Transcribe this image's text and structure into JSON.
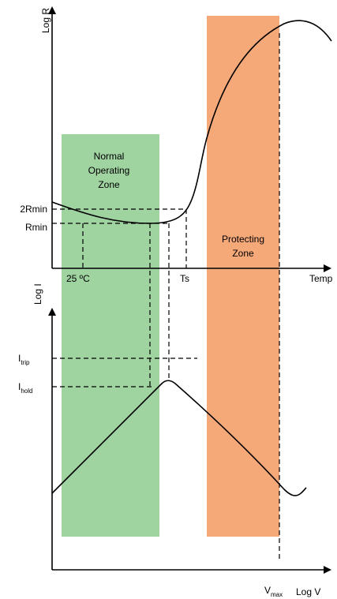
{
  "colors": {
    "normal_zone": "#9fd3a0",
    "protecting_zone": "#f6a978",
    "ink": "#000000"
  },
  "top_plot": {
    "y_axis_label": "Log R",
    "x_axis_label": "Temp",
    "y_ticks": [
      "2Rmin",
      "Rmin"
    ],
    "x_ticks": [
      "25 ºC",
      "Ts"
    ]
  },
  "bottom_plot": {
    "y_axis_label": "Log I",
    "x_axis_label": "Log V",
    "y_ticks": [
      {
        "main": "I",
        "sub": "trip"
      },
      {
        "main": "I",
        "sub": "hold"
      }
    ],
    "x_ticks": [
      {
        "main": "V",
        "sub": "max"
      }
    ]
  },
  "zones": {
    "normal": [
      "Normal",
      "Operating",
      "Zone"
    ],
    "protecting": [
      "Protecting",
      "Zone"
    ]
  }
}
